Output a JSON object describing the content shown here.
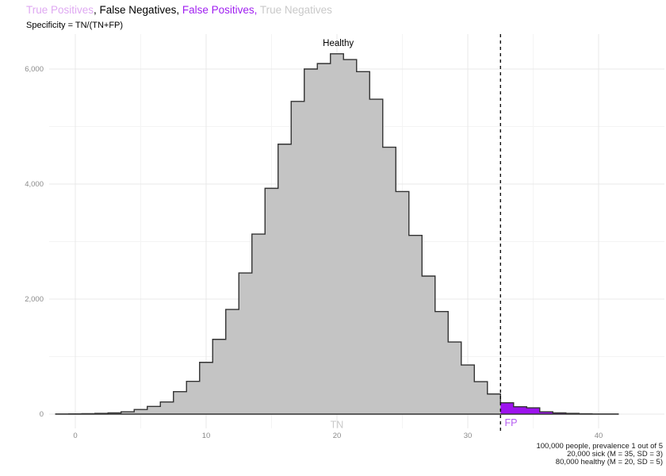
{
  "header": {
    "title_segments": [
      {
        "text": "True Positives",
        "color": "#DFA9F2"
      },
      {
        "text": ", False Negatives, ",
        "color": "#000000"
      },
      {
        "text": "False Positives,",
        "color": "#A020F0"
      },
      {
        "text": " True Negatives",
        "color": "#C9C9C9"
      }
    ],
    "subtitle": "Specificity = TN/(TN+FP)"
  },
  "caption": {
    "lines": [
      "100,000 people, prevalence 1 out of 5",
      "20,000 sick (M = 35, SD = 3)",
      "80,000 healthy (M = 20, SD = 5)"
    ]
  },
  "chart_data": {
    "type": "bar",
    "variant": "step-histogram",
    "title": "",
    "xlabel": "",
    "ylabel": "",
    "bin_width": 1,
    "bin_centers": [
      -1,
      0,
      1,
      2,
      3,
      4,
      5,
      6,
      7,
      8,
      9,
      10,
      11,
      12,
      13,
      14,
      15,
      16,
      17,
      18,
      19,
      20,
      21,
      22,
      23,
      24,
      25,
      26,
      27,
      28,
      29,
      30,
      31,
      32,
      33,
      34,
      35,
      36,
      37,
      38,
      39,
      40,
      41
    ],
    "counts": [
      2,
      4,
      7,
      12,
      22,
      41,
      80,
      134,
      211,
      390,
      570,
      900,
      1300,
      1820,
      2455,
      3130,
      3926,
      4693,
      5437,
      6000,
      6095,
      6265,
      6165,
      5955,
      5475,
      4640,
      3870,
      3108,
      2400,
      1783,
      1255,
      855,
      565,
      350,
      197,
      128,
      110,
      40,
      22,
      12,
      6,
      3,
      2
    ],
    "cutoff": 32.5,
    "regions": {
      "below_cutoff": {
        "label": "TN",
        "fill": "#C4C4C4"
      },
      "above_cutoff": {
        "label": "FP",
        "fill": "#9D12EE"
      }
    },
    "outline_color": "#333333",
    "cutoff_line": {
      "style": "dashed",
      "color": "#000000"
    },
    "x_ticks": {
      "values": [
        0,
        10,
        20,
        30,
        40
      ],
      "labels": [
        "0",
        "10",
        "20",
        "30",
        "40"
      ]
    },
    "x_minor": [
      5,
      15,
      25,
      35
    ],
    "y_ticks": {
      "values": [
        0,
        2000,
        4000,
        6000
      ],
      "labels": [
        "0",
        "2,000",
        "4,000",
        "6,000"
      ]
    },
    "y_minor": [
      1000,
      3000,
      5000
    ],
    "xlim": [
      -2,
      44.8
    ],
    "ylim": [
      0,
      6600
    ],
    "grid": true,
    "legend_position": "none",
    "axis_text_color": "#8A8A8A",
    "grid_major_color": "#E9E9E9",
    "grid_minor_color": "#F4F4F4",
    "annotations": [
      {
        "id": "healthy",
        "text": "Healthy",
        "x": 20.1,
        "y": 6400,
        "color": "#000000",
        "size": 11.5
      },
      {
        "id": "tn",
        "text": "TN",
        "x": 20.0,
        "y": -240,
        "color": "#C9C9C9",
        "size": 12.5
      },
      {
        "id": "fp",
        "text": "FP",
        "x": 33.3,
        "y": -205,
        "color": "#B55CF2",
        "size": 12.5
      }
    ]
  }
}
